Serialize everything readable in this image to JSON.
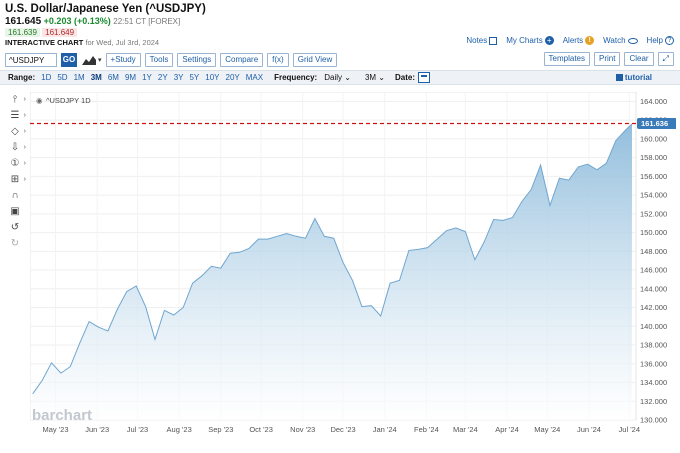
{
  "header": {
    "title": "U.S. Dollar/Japanese Yen (^USDJPY)",
    "last": "161.645",
    "change": "+0.203 (+0.13%)",
    "timestamp": "22:51 CT [FOREX]",
    "bid": "161.639",
    "ask": "161.649",
    "interactive_label": "INTERACTIVE CHART",
    "date_label": "for Wed, Jul 3rd, 2024"
  },
  "toplinks": {
    "notes": "Notes",
    "my_charts": "My Charts",
    "alerts": "Alerts",
    "watch": "Watch",
    "help": "Help"
  },
  "toolbar": {
    "symbol_value": "^USDJPY",
    "go": "GO",
    "study": "+Study",
    "tools": "Tools",
    "settings": "Settings",
    "compare": "Compare",
    "fx": "f(x)",
    "grid_view": "Grid View",
    "templates": "Templates",
    "print": "Print",
    "clear": "Clear"
  },
  "rangebar": {
    "range_label": "Range:",
    "ranges": [
      "1D",
      "5D",
      "1M",
      "3M",
      "6M",
      "9M",
      "1Y",
      "2Y",
      "3Y",
      "5Y",
      "10Y",
      "20Y",
      "MAX"
    ],
    "active_range": "3M",
    "frequency_label": "Frequency:",
    "frequency_value": "Daily",
    "period_value": "3M",
    "date_label": "Date:",
    "tutorial": "tutorial"
  },
  "left_tools": [
    "crosshair-icon",
    "fib-icon",
    "shapes-icon",
    "arrow-icon",
    "number-icon",
    "measure-icon",
    "magnet-icon",
    "lock-icon",
    "undo-icon",
    "redo-icon"
  ],
  "chart_data": {
    "type": "area",
    "legend": "^USDJPY 1D",
    "watermark": "barchart",
    "last_price_label": "161.636",
    "last_price": 161.636,
    "ylim": [
      130,
      165
    ],
    "y_ticks": [
      "164.000",
      "162.000",
      "160.000",
      "158.000",
      "156.000",
      "154.000",
      "152.000",
      "150.000",
      "148.000",
      "146.000",
      "144.000",
      "142.000",
      "140.000",
      "138.000",
      "136.000",
      "134.000",
      "132.000",
      "130.000"
    ],
    "x_ticks": [
      "May '23",
      "Jun '23",
      "Jul '23",
      "Aug '23",
      "Sep '23",
      "Oct '23",
      "Nov '23",
      "Dec '23",
      "Jan '24",
      "Feb '24",
      "Mar '24",
      "Apr '24",
      "May '24",
      "Jun '24",
      "Jul '24"
    ],
    "x": [
      "2023-04-14",
      "2023-04-21",
      "2023-04-28",
      "2023-05-05",
      "2023-05-12",
      "2023-05-19",
      "2023-05-26",
      "2023-06-02",
      "2023-06-09",
      "2023-06-16",
      "2023-06-23",
      "2023-06-30",
      "2023-07-07",
      "2023-07-14",
      "2023-07-21",
      "2023-07-28",
      "2023-08-04",
      "2023-08-11",
      "2023-08-18",
      "2023-08-25",
      "2023-09-01",
      "2023-09-08",
      "2023-09-15",
      "2023-09-22",
      "2023-09-29",
      "2023-10-06",
      "2023-10-13",
      "2023-10-20",
      "2023-10-27",
      "2023-11-03",
      "2023-11-10",
      "2023-11-17",
      "2023-11-24",
      "2023-12-01",
      "2023-12-08",
      "2023-12-15",
      "2023-12-22",
      "2023-12-29",
      "2024-01-05",
      "2024-01-12",
      "2024-01-19",
      "2024-01-26",
      "2024-02-02",
      "2024-02-09",
      "2024-02-16",
      "2024-02-23",
      "2024-03-01",
      "2024-03-08",
      "2024-03-15",
      "2024-03-22",
      "2024-03-29",
      "2024-04-05",
      "2024-04-12",
      "2024-04-19",
      "2024-04-26",
      "2024-05-03",
      "2024-05-10",
      "2024-05-17",
      "2024-05-24",
      "2024-05-31",
      "2024-06-07",
      "2024-06-14",
      "2024-06-21",
      "2024-06-28",
      "2024-07-03"
    ],
    "values": [
      132.8,
      134.2,
      136.1,
      135.0,
      135.7,
      138.2,
      140.5,
      139.9,
      139.5,
      141.8,
      143.7,
      144.3,
      142.1,
      138.6,
      141.7,
      141.2,
      142.0,
      144.6,
      145.4,
      146.4,
      146.2,
      147.8,
      147.9,
      148.3,
      149.3,
      149.3,
      149.6,
      149.9,
      149.6,
      149.4,
      151.5,
      149.6,
      149.4,
      146.8,
      144.9,
      142.1,
      142.2,
      141.1,
      144.6,
      144.9,
      148.1,
      148.2,
      148.4,
      149.3,
      150.2,
      150.5,
      150.1,
      147.1,
      149.0,
      151.4,
      151.3,
      151.6,
      153.3,
      154.6,
      157.2,
      152.9,
      155.8,
      155.6,
      157.0,
      157.3,
      156.7,
      157.4,
      159.8,
      160.9,
      161.6
    ],
    "grid": true,
    "legend_position": "top-left"
  }
}
